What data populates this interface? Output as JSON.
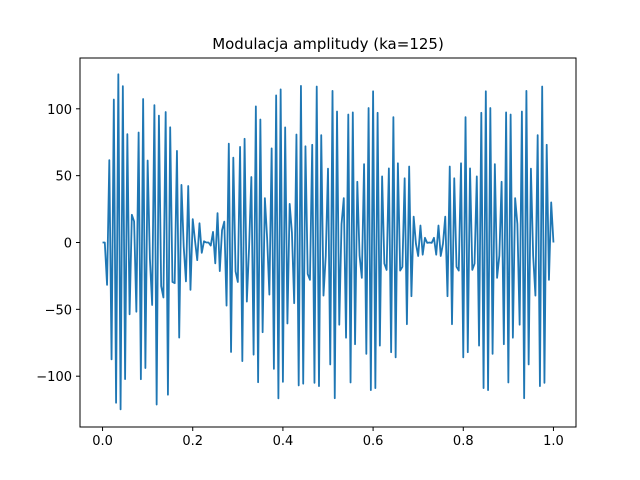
{
  "chart_data": {
    "type": "line",
    "title": "Modulacja amplitudy (ka=125)",
    "xlabel": "",
    "ylabel": "",
    "xlim": [
      -0.05,
      1.05
    ],
    "ylim": [
      -138,
      138
    ],
    "grid": false,
    "x_ticks": [
      0.0,
      0.2,
      0.4,
      0.6,
      0.8,
      1.0
    ],
    "x_tick_labels": [
      "0.0",
      "0.2",
      "0.4",
      "0.6",
      "0.8",
      "1.0"
    ],
    "y_ticks": [
      -100,
      -50,
      0,
      50,
      100
    ],
    "y_tick_labels": [
      "−100",
      "−50",
      "0",
      "50",
      "100"
    ],
    "colors": {
      "series": "#1f77b4"
    },
    "series": [
      {
        "x": [
          0.0,
          0.005,
          0.01,
          0.015,
          0.02,
          0.025,
          0.03,
          0.035,
          0.04,
          0.045,
          0.05,
          0.055,
          0.06,
          0.065,
          0.07,
          0.075,
          0.08,
          0.085,
          0.09,
          0.095,
          0.1,
          0.105,
          0.11,
          0.115,
          0.12,
          0.125,
          0.13,
          0.135,
          0.14,
          0.145,
          0.15,
          0.155,
          0.16,
          0.165,
          0.17,
          0.175,
          0.18,
          0.185,
          0.19,
          0.195,
          0.2,
          0.205,
          0.21,
          0.215,
          0.22,
          0.225,
          0.23,
          0.235,
          0.24,
          0.245,
          0.25,
          0.255,
          0.26,
          0.265,
          0.27,
          0.275,
          0.28,
          0.285,
          0.29,
          0.295,
          0.3,
          0.305,
          0.31,
          0.315,
          0.32,
          0.325,
          0.33,
          0.335,
          0.34,
          0.345,
          0.35,
          0.355,
          0.36,
          0.365,
          0.37,
          0.375,
          0.38,
          0.385,
          0.39,
          0.395,
          0.4,
          0.405,
          0.41,
          0.415,
          0.42,
          0.425,
          0.43,
          0.435,
          0.44,
          0.445,
          0.45,
          0.455,
          0.46,
          0.465,
          0.47,
          0.475,
          0.48,
          0.485,
          0.49,
          0.495,
          0.5,
          0.505,
          0.51,
          0.515,
          0.52,
          0.525,
          0.53,
          0.535,
          0.54,
          0.545,
          0.55,
          0.555,
          0.56,
          0.565,
          0.57,
          0.575,
          0.58,
          0.585,
          0.59,
          0.595,
          0.6,
          0.605,
          0.61,
          0.615,
          0.62,
          0.625,
          0.63,
          0.635,
          0.64,
          0.645,
          0.65,
          0.655,
          0.66,
          0.665,
          0.67,
          0.675,
          0.68,
          0.685,
          0.69,
          0.695,
          0.7,
          0.705,
          0.71,
          0.715,
          0.72,
          0.725,
          0.73,
          0.735,
          0.74,
          0.745,
          0.75,
          0.755,
          0.76,
          0.765,
          0.77,
          0.775,
          0.78,
          0.785,
          0.79,
          0.795,
          0.8,
          0.805,
          0.81,
          0.815,
          0.82,
          0.825,
          0.83,
          0.835,
          0.84,
          0.845,
          0.85,
          0.855,
          0.86,
          0.865,
          0.87,
          0.875,
          0.88,
          0.885,
          0.89,
          0.895,
          0.9,
          0.905,
          0.91,
          0.915,
          0.92,
          0.925,
          0.93,
          0.935,
          0.94,
          0.945,
          0.95,
          0.955,
          0.96,
          0.965,
          0.97,
          0.975,
          0.98,
          0.985,
          0.99,
          0.995,
          1.0
        ],
        "y": [
          0.0,
          -0.0,
          -31.7,
          61.6,
          -87.4,
          106.9,
          -119.9,
          125.8,
          -124.8,
          116.9,
          -102.2,
          81.0,
          -53.7,
          20.7,
          15.8,
          -51.8,
          82.3,
          -102.3,
          107.3,
          -93.9,
          61.3,
          -12.0,
          -46.7,
          102.7,
          -121.2,
          94.9,
          -32.6,
          -41.1,
          97.6,
          -113.9,
          86.2,
          -29.5,
          -30.4,
          68.5,
          -71.1,
          43.1,
          -3.0,
          -29.1,
          42.2,
          -35.4,
          17.5,
          1.6,
          -13.2,
          14.4,
          -7.7,
          0.9,
          0.0,
          0.0,
          -2.3,
          7.9,
          -15.6,
          22.0,
          -21.4,
          9.2,
          15.6,
          -47.2,
          73.9,
          -81.9,
          63.5,
          -21.6,
          -29.5,
          71.5,
          -88.7,
          77.6,
          -44.2,
          -3.5,
          49.0,
          -83.9,
          101.8,
          -104.5,
          92.0,
          -67.1,
          33.2,
          3.1,
          -39.0,
          70.4,
          -94.5,
          110.0,
          -116.6,
          114.5,
          -104.2,
          86.1,
          -60.6,
          28.9,
          7.4,
          -45.4,
          80.8,
          -106.9,
          117.1,
          -105.6,
          72.0,
          -23.6,
          -27.9,
          73.1,
          -105.0,
          116.7,
          -107.4,
          80.3,
          -39.7,
          -10.1,
          55.2,
          -91.2,
          113.4,
          -116.5,
          98.0,
          -61.5,
          13.9,
          33.2,
          -71.2,
          95.7,
          -104.7,
          97.3,
          -76.1,
          45.4,
          -9.8,
          -26.4,
          58.6,
          -83.3,
          100.6,
          -110.4,
          113.1,
          -108.9,
          97.0,
          -77.1,
          49.4,
          -15.8,
          -20.5,
          55.4,
          -82.1,
          93.8,
          -85.9,
          59.3,
          -21.0,
          -18.2,
          48.0,
          -61.1,
          56.8,
          -40.2,
          19.3,
          -0.9,
          -10.1,
          12.7,
          -9.1,
          3.5,
          -0.3,
          0.0,
          -0.3,
          3.5,
          -9.1,
          12.7,
          -10.1,
          -0.9,
          19.3,
          -40.2,
          56.8,
          -61.1,
          48.0,
          -18.2,
          -21.0,
          59.3,
          -85.9,
          93.8,
          -82.1,
          55.4,
          -20.5,
          -15.8,
          49.4,
          -77.1,
          97.0,
          -108.9,
          113.1,
          -110.4,
          100.6,
          -83.3,
          58.6,
          -26.4,
          -9.8,
          45.4,
          -76.1,
          97.3,
          -104.7,
          95.7,
          -71.2,
          33.2,
          13.9,
          -61.5,
          98.0,
          -116.5,
          113.4,
          -91.2,
          55.2,
          -10.1,
          -39.7,
          80.3,
          -107.4,
          116.7,
          -105.0,
          73.1,
          -27.9,
          30.0,
          0.0
        ]
      }
    ]
  }
}
